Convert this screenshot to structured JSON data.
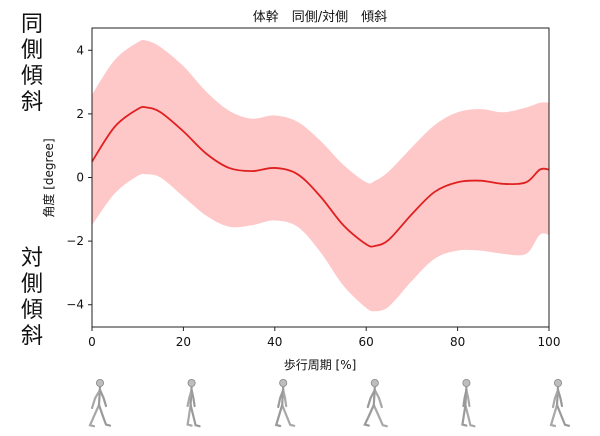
{
  "chart_data": {
    "type": "line",
    "title": "体幹　同側/対側　傾斜",
    "xlabel": "歩行周期 [%]",
    "ylabel": "角度 [degree]",
    "xlim": [
      0,
      100
    ],
    "ylim": [
      -4.7,
      4.7
    ],
    "xticks": [
      0,
      20,
      40,
      60,
      80,
      100
    ],
    "yticks": [
      -4,
      -2,
      0,
      2,
      4
    ],
    "grid": false,
    "series": [
      {
        "color": "#e02020",
        "band_color": "#ffc8c8",
        "x": [
          0,
          5,
          10,
          12,
          15,
          20,
          25,
          30,
          35,
          40,
          45,
          50,
          55,
          60,
          62,
          65,
          70,
          75,
          80,
          85,
          90,
          95,
          98,
          100
        ],
        "values": [
          0.5,
          1.6,
          2.15,
          2.2,
          2.05,
          1.45,
          0.75,
          0.3,
          0.2,
          0.3,
          0.1,
          -0.6,
          -1.5,
          -2.1,
          -2.15,
          -1.95,
          -1.15,
          -0.45,
          -0.15,
          -0.1,
          -0.2,
          -0.15,
          0.25,
          0.25
        ],
        "upper": [
          2.6,
          3.7,
          4.25,
          4.3,
          4.1,
          3.5,
          2.7,
          2.1,
          1.85,
          1.95,
          1.75,
          1.15,
          0.4,
          -0.15,
          -0.1,
          0.2,
          0.95,
          1.65,
          2.05,
          2.15,
          2.05,
          2.2,
          2.35,
          2.35
        ],
        "lower": [
          -1.5,
          -0.5,
          0.05,
          0.1,
          0.0,
          -0.6,
          -1.2,
          -1.55,
          -1.5,
          -1.35,
          -1.55,
          -2.35,
          -3.4,
          -4.1,
          -4.2,
          -4.05,
          -3.25,
          -2.55,
          -2.3,
          -2.3,
          -2.4,
          -2.4,
          -1.8,
          -1.8
        ]
      }
    ]
  },
  "side_labels": {
    "top": [
      "同",
      "側",
      "傾",
      "斜"
    ],
    "bottom": [
      "対",
      "側",
      "傾",
      "斜"
    ]
  },
  "gait_figures": {
    "count": 6,
    "icon": "walking-skeleton-icon"
  }
}
